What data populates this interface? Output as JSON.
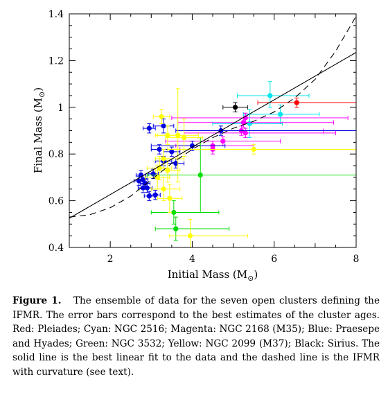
{
  "chart_data": {
    "type": "scatter",
    "xlabel": "Initial Mass (M",
    "ylabel": "Final Mass (M",
    "label_suffix": ")",
    "sun_symbol": "⊙",
    "xlim": [
      1,
      8
    ],
    "ylim": [
      0.4,
      1.4
    ],
    "xticks": [
      2,
      4,
      6,
      8
    ],
    "yticks": [
      0.4,
      0.6,
      0.8,
      1.0,
      1.2,
      1.4
    ],
    "xtick_labels": [
      "2",
      "4",
      "6",
      "8"
    ],
    "ytick_labels": [
      "0.4",
      "0.6",
      "0.8",
      "1",
      "1.2",
      "1.4"
    ],
    "grid": false,
    "linear_fit": {
      "x": [
        1,
        8
      ],
      "y": [
        0.525,
        1.235
      ]
    },
    "curved_ifmr": {
      "x": [
        1.0,
        1.5,
        2.0,
        2.5,
        3.0,
        3.5,
        4.0,
        4.5,
        5.0,
        5.5,
        6.0,
        6.5,
        7.0,
        7.5,
        8.0
      ],
      "y": [
        0.53,
        0.54,
        0.57,
        0.62,
        0.69,
        0.76,
        0.82,
        0.87,
        0.91,
        0.94,
        0.98,
        1.04,
        1.12,
        1.24,
        1.39
      ]
    },
    "series": [
      {
        "color": "#ff0000",
        "points": [
          {
            "x": 6.55,
            "y": 1.02,
            "xerr": [
              0.95,
              1.5
            ],
            "yerr": [
              0.02,
              0.02
            ]
          }
        ]
      },
      {
        "color": "#00e5ee",
        "points": [
          {
            "x": 5.9,
            "y": 1.05,
            "xerr": [
              0.8,
              0.95
            ],
            "yerr": [
              0.05,
              0.06
            ]
          },
          {
            "x": 6.15,
            "y": 0.97,
            "xerr": [
              0.9,
              0.95
            ],
            "yerr": [
              0.04,
              0.04
            ]
          },
          {
            "x": 5.4,
            "y": 0.93,
            "xerr": [
              0.9,
              0.8
            ],
            "yerr": [
              0.06,
              0.06
            ]
          }
        ]
      },
      {
        "color": "#ff00ff",
        "points": [
          {
            "x": 5.3,
            "y": 0.955,
            "xerr": [
              1.8,
              2.5
            ],
            "yerr": [
              0.02,
              0.02
            ]
          },
          {
            "x": 5.25,
            "y": 0.935,
            "xerr": [
              1.6,
              2.2
            ],
            "yerr": [
              0.02,
              0.02
            ]
          },
          {
            "x": 5.3,
            "y": 0.89,
            "xerr": [
              1.5,
              2.2
            ],
            "yerr": [
              0.02,
              0.02
            ]
          },
          {
            "x": 4.75,
            "y": 0.855,
            "xerr": [
              1.4,
              1.4
            ],
            "yerr": [
              0.02,
              0.02
            ]
          },
          {
            "x": 4.5,
            "y": 0.835,
            "xerr": [
              0.9,
              1.0
            ],
            "yerr": [
              0.02,
              0.02
            ]
          },
          {
            "x": 4.5,
            "y": 0.82,
            "xerr": [
              0.8,
              1.0
            ],
            "yerr": [
              0.02,
              0.02
            ]
          },
          {
            "x": 5.2,
            "y": 0.9,
            "xerr": [
              1.4,
              2.0
            ],
            "yerr": [
              0.02,
              0.02
            ]
          }
        ]
      },
      {
        "color": "#0000e0",
        "points": [
          {
            "x": 2.95,
            "y": 0.91,
            "xerr": [
              0.15,
              0.15
            ],
            "yerr": [
              0.02,
              0.02
            ]
          },
          {
            "x": 3.3,
            "y": 0.92,
            "xerr": [
              0.25,
              0.25
            ],
            "yerr": [
              0.03,
              0.03
            ]
          },
          {
            "x": 3.2,
            "y": 0.82,
            "xerr": [
              0.2,
              0.2
            ],
            "yerr": [
              0.02,
              0.02
            ]
          },
          {
            "x": 3.5,
            "y": 0.81,
            "xerr": [
              0.2,
              0.2
            ],
            "yerr": [
              0.02,
              0.02
            ]
          },
          {
            "x": 3.3,
            "y": 0.77,
            "xerr": [
              0.2,
              0.2
            ],
            "yerr": [
              0.02,
              0.02
            ]
          },
          {
            "x": 3.6,
            "y": 0.76,
            "xerr": [
              0.2,
              0.2
            ],
            "yerr": [
              0.02,
              0.02
            ]
          },
          {
            "x": 4.7,
            "y": 0.9,
            "xerr": [
              1.1,
              3.3
            ],
            "yerr": [
              0.02,
              0.02
            ]
          },
          {
            "x": 4.0,
            "y": 0.835,
            "xerr": [
              1.0,
              0.8
            ],
            "yerr": [
              0.02,
              0.02
            ]
          },
          {
            "x": 2.75,
            "y": 0.71,
            "xerr": [
              0.12,
              0.12
            ],
            "yerr": [
              0.02,
              0.02
            ]
          },
          {
            "x": 2.8,
            "y": 0.69,
            "xerr": [
              0.12,
              0.12
            ],
            "yerr": [
              0.02,
              0.02
            ]
          },
          {
            "x": 2.85,
            "y": 0.675,
            "xerr": [
              0.12,
              0.12
            ],
            "yerr": [
              0.02,
              0.02
            ]
          },
          {
            "x": 2.8,
            "y": 0.655,
            "xerr": [
              0.12,
              0.12
            ],
            "yerr": [
              0.02,
              0.02
            ]
          },
          {
            "x": 2.9,
            "y": 0.655,
            "xerr": [
              0.12,
              0.12
            ],
            "yerr": [
              0.02,
              0.02
            ]
          },
          {
            "x": 2.95,
            "y": 0.62,
            "xerr": [
              0.12,
              0.12
            ],
            "yerr": [
              0.02,
              0.02
            ]
          },
          {
            "x": 3.1,
            "y": 0.625,
            "xerr": [
              0.12,
              0.12
            ],
            "yerr": [
              0.02,
              0.02
            ]
          },
          {
            "x": 3.05,
            "y": 0.715,
            "xerr": [
              0.12,
              0.12
            ],
            "yerr": [
              0.02,
              0.02
            ]
          },
          {
            "x": 2.7,
            "y": 0.685,
            "xerr": [
              0.12,
              0.12
            ],
            "yerr": [
              0.02,
              0.02
            ]
          }
        ]
      },
      {
        "color": "#00dd00",
        "points": [
          {
            "x": 4.2,
            "y": 0.71,
            "xerr": [
              1.3,
              3.8
            ],
            "yerr": [
              0.16,
              0.16
            ]
          },
          {
            "x": 3.55,
            "y": 0.55,
            "xerr": [
              0.55,
              1.1
            ],
            "yerr": [
              0.05,
              0.05
            ]
          },
          {
            "x": 3.6,
            "y": 0.48,
            "xerr": [
              0.5,
              1.3
            ],
            "yerr": [
              0.05,
              0.05
            ]
          }
        ]
      },
      {
        "color": "#ffff00",
        "points": [
          {
            "x": 3.25,
            "y": 0.96,
            "xerr": [
              0.2,
              0.2
            ],
            "yerr": [
              0.03,
              0.03
            ]
          },
          {
            "x": 3.65,
            "y": 0.88,
            "xerr": [
              0.5,
              0.5
            ],
            "yerr": [
              0.2,
              0.2
            ]
          },
          {
            "x": 3.4,
            "y": 0.88,
            "xerr": [
              0.3,
              0.3
            ],
            "yerr": [
              0.04,
              0.04
            ]
          },
          {
            "x": 3.8,
            "y": 0.87,
            "xerr": [
              0.45,
              0.45
            ],
            "yerr": [
              0.08,
              0.08
            ]
          },
          {
            "x": 3.3,
            "y": 0.78,
            "xerr": [
              0.2,
              0.5
            ],
            "yerr": [
              0.04,
              0.04
            ]
          },
          {
            "x": 3.2,
            "y": 0.74,
            "xerr": [
              0.3,
              0.3
            ],
            "yerr": [
              0.05,
              0.05
            ]
          },
          {
            "x": 3.4,
            "y": 0.73,
            "xerr": [
              0.3,
              0.3
            ],
            "yerr": [
              0.05,
              0.05
            ]
          },
          {
            "x": 3.15,
            "y": 0.7,
            "xerr": [
              0.3,
              0.3
            ],
            "yerr": [
              0.05,
              0.05
            ]
          },
          {
            "x": 3.3,
            "y": 0.65,
            "xerr": [
              0.3,
              0.4
            ],
            "yerr": [
              0.05,
              0.05
            ]
          },
          {
            "x": 3.45,
            "y": 0.61,
            "xerr": [
              0.3,
              0.3
            ],
            "yerr": [
              0.06,
              0.06
            ]
          },
          {
            "x": 3.95,
            "y": 0.45,
            "xerr": [
              0.5,
              1.4
            ],
            "yerr": [
              0.07,
              0.07
            ]
          },
          {
            "x": 5.5,
            "y": 0.82,
            "xerr": [
              2.1,
              2.5
            ],
            "yerr": [
              0.02,
              0.02
            ]
          }
        ]
      },
      {
        "color": "#000000",
        "points": [
          {
            "x": 5.05,
            "y": 1.0,
            "xerr": [
              0.3,
              0.3
            ],
            "yerr": [
              0.02,
              0.02
            ]
          }
        ]
      }
    ]
  },
  "caption": {
    "label": "Figure 1.",
    "text": "The ensemble of data for the seven open clusters defining the IFMR. The error bars correspond to the best estimates of the cluster ages. Red: Pleiades; Cyan: NGC 2516; Magenta: NGC 2168 (M35); Blue: Praesepe and Hyades; Green: NGC 3532; Yellow: NGC 2099 (M37); Black: Sirius. The solid line is the best linear fit to the data and the dashed line is the IFMR with curvature (see text)."
  }
}
